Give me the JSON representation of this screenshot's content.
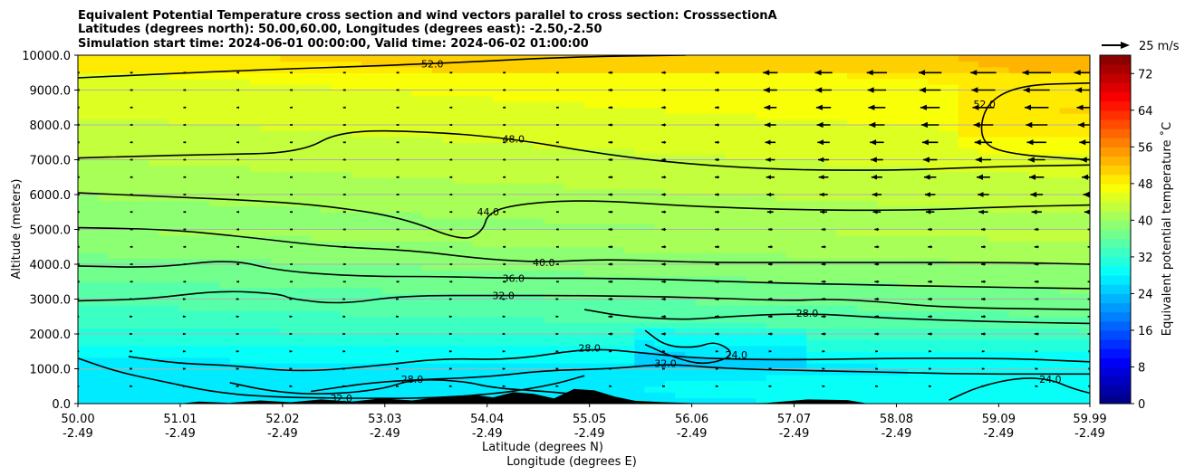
{
  "chart_data": {
    "type": "heatmap",
    "title_lines": [
      "Equivalent Potential Temperature cross section and wind vectors parallel to cross section: CrosssectionA",
      "Latitudes (degrees north): 50.00,60.00, Longitudes (degrees east): -2.50,-2.50",
      "Simulation start time: 2024-06-01 00:00:00, Valid time: 2024-06-02 01:00:00"
    ],
    "xlabel_lines": [
      "Latitude (degrees N)",
      "Longitude (degrees E)"
    ],
    "ylabel": "Altitude (meters)",
    "xlim": [
      50.0,
      59.99
    ],
    "ylim": [
      0,
      10000
    ],
    "x_ticks": [
      {
        "lat": "50.00",
        "lon": "-2.49",
        "value": 50.0
      },
      {
        "lat": "51.01",
        "lon": "-2.49",
        "value": 51.01
      },
      {
        "lat": "52.02",
        "lon": "-2.49",
        "value": 52.02
      },
      {
        "lat": "53.03",
        "lon": "-2.49",
        "value": 53.03
      },
      {
        "lat": "54.04",
        "lon": "-2.49",
        "value": 54.04
      },
      {
        "lat": "55.05",
        "lon": "-2.49",
        "value": 55.05
      },
      {
        "lat": "56.06",
        "lon": "-2.49",
        "value": 56.06
      },
      {
        "lat": "57.07",
        "lon": "-2.49",
        "value": 57.07
      },
      {
        "lat": "58.08",
        "lon": "-2.49",
        "value": 58.08
      },
      {
        "lat": "59.09",
        "lon": "-2.49",
        "value": 59.09
      },
      {
        "lat": "59.99",
        "lon": "-2.49",
        "value": 59.99
      }
    ],
    "y_ticks": [
      {
        "label": "0.0",
        "value": 0
      },
      {
        "label": "1000.0",
        "value": 1000
      },
      {
        "label": "2000.0",
        "value": 2000
      },
      {
        "label": "3000.0",
        "value": 3000
      },
      {
        "label": "4000.0",
        "value": 4000
      },
      {
        "label": "5000.0",
        "value": 5000
      },
      {
        "label": "6000.0",
        "value": 6000
      },
      {
        "label": "7000.0",
        "value": 7000
      },
      {
        "label": "8000.0",
        "value": 8000
      },
      {
        "label": "9000.0",
        "value": 9000
      },
      {
        "label": "10000.0",
        "value": 10000
      }
    ],
    "grid": "horizontal",
    "colorbar": {
      "label": "Equivalent potential temperature ˚C",
      "range": [
        0,
        76
      ],
      "ticks": [
        "0",
        "8",
        "16",
        "24",
        "32",
        "40",
        "48",
        "56",
        "64",
        "72"
      ],
      "tick_values": [
        0,
        8,
        16,
        24,
        32,
        40,
        48,
        56,
        64,
        72
      ]
    },
    "quiver_key": {
      "label": "25 m/s",
      "speed": 25
    },
    "contour_levels": [
      24,
      28,
      32,
      36,
      40,
      44,
      48,
      52
    ],
    "contours": [
      {
        "level": 52,
        "label": "52.0",
        "points": [
          [
            50.0,
            9350
          ],
          [
            51.5,
            9550
          ],
          [
            53.5,
            9750
          ],
          [
            54.8,
            9950
          ],
          [
            56.0,
            10000
          ]
        ]
      },
      {
        "level": 52,
        "label": "52.0",
        "points": [
          [
            59.99,
            7000
          ],
          [
            59.2,
            7150
          ],
          [
            58.9,
            7500
          ],
          [
            58.95,
            8600
          ],
          [
            59.3,
            9150
          ],
          [
            59.99,
            9200
          ]
        ]
      },
      {
        "level": 48,
        "label": "48.0",
        "points": [
          [
            50.0,
            7050
          ],
          [
            50.6,
            7100
          ],
          [
            51.3,
            7150
          ],
          [
            52.2,
            7200
          ],
          [
            52.6,
            7850
          ],
          [
            53.5,
            7800
          ],
          [
            54.3,
            7600
          ],
          [
            55.1,
            7200
          ],
          [
            55.9,
            6900
          ],
          [
            57.0,
            6700
          ],
          [
            58.2,
            6700
          ],
          [
            59.0,
            6800
          ],
          [
            59.99,
            6850
          ]
        ]
      },
      {
        "level": 44,
        "label": "44.0",
        "points": [
          [
            50.0,
            6050
          ],
          [
            50.8,
            5950
          ],
          [
            51.6,
            5850
          ],
          [
            52.4,
            5700
          ],
          [
            53.2,
            5350
          ],
          [
            53.8,
            4650
          ],
          [
            54.0,
            4950
          ],
          [
            54.05,
            5500
          ],
          [
            54.4,
            5750
          ],
          [
            55.05,
            5850
          ],
          [
            56.1,
            5650
          ],
          [
            57.3,
            5550
          ],
          [
            58.3,
            5550
          ],
          [
            59.2,
            5650
          ],
          [
            59.99,
            5700
          ]
        ]
      },
      {
        "level": 40,
        "label": "40.0",
        "points": [
          [
            50.0,
            5050
          ],
          [
            50.9,
            5000
          ],
          [
            51.6,
            4800
          ],
          [
            52.5,
            4500
          ],
          [
            53.3,
            4400
          ],
          [
            54.0,
            4150
          ],
          [
            54.6,
            4050
          ],
          [
            55.2,
            4150
          ],
          [
            56.1,
            4050
          ],
          [
            57.0,
            4050
          ],
          [
            58.2,
            4050
          ],
          [
            59.2,
            4050
          ],
          [
            59.99,
            4000
          ]
        ]
      },
      {
        "level": 36,
        "label": "36.0",
        "points": [
          [
            50.0,
            3950
          ],
          [
            50.8,
            3900
          ],
          [
            51.5,
            4150
          ],
          [
            52.0,
            3800
          ],
          [
            52.8,
            3650
          ],
          [
            53.5,
            3650
          ],
          [
            54.3,
            3600
          ],
          [
            55.2,
            3600
          ],
          [
            56.0,
            3550
          ],
          [
            57.0,
            3450
          ],
          [
            58.0,
            3400
          ],
          [
            58.8,
            3350
          ],
          [
            59.99,
            3300
          ]
        ]
      },
      {
        "level": 32,
        "label": "32.0",
        "points": [
          [
            50.0,
            2950
          ],
          [
            50.7,
            3000
          ],
          [
            51.4,
            3250
          ],
          [
            52.0,
            3150
          ],
          [
            52.1,
            3000
          ],
          [
            52.6,
            2850
          ],
          [
            53.2,
            3100
          ],
          [
            54.2,
            3100
          ],
          [
            55.0,
            3100
          ],
          [
            56.1,
            3050
          ],
          [
            57.0,
            2950
          ],
          [
            57.4,
            3000
          ],
          [
            57.8,
            2950
          ],
          [
            58.6,
            2750
          ],
          [
            59.99,
            2700
          ]
        ]
      },
      {
        "level": 28,
        "label": "28.0",
        "points": [
          [
            55.0,
            2700
          ],
          [
            55.4,
            2500
          ],
          [
            56.0,
            2400
          ],
          [
            56.4,
            2500
          ],
          [
            57.2,
            2600
          ],
          [
            58.0,
            2450
          ],
          [
            59.0,
            2350
          ],
          [
            59.99,
            2300
          ]
        ]
      },
      {
        "level": 28,
        "label": "28.0",
        "points": [
          [
            50.5,
            1350
          ],
          [
            51.0,
            1150
          ],
          [
            51.5,
            1100
          ],
          [
            52.2,
            900
          ],
          [
            53.0,
            1100
          ],
          [
            53.6,
            1300
          ],
          [
            54.3,
            1250
          ],
          [
            55.05,
            1600
          ],
          [
            55.6,
            1450
          ],
          [
            56.1,
            1300
          ],
          [
            57.0,
            1250
          ],
          [
            58.0,
            1300
          ],
          [
            59.2,
            1300
          ],
          [
            59.99,
            1200
          ]
        ]
      },
      {
        "level": 32,
        "label": "32.0",
        "points": [
          [
            52.3,
            350
          ],
          [
            53.0,
            650
          ],
          [
            54.0,
            750
          ],
          [
            54.6,
            950
          ],
          [
            55.3,
            1000
          ],
          [
            55.8,
            1150
          ],
          [
            56.4,
            1000
          ],
          [
            57.2,
            950
          ],
          [
            58.0,
            900
          ],
          [
            58.8,
            850
          ],
          [
            59.99,
            850
          ]
        ]
      },
      {
        "level": 28,
        "label": "28.0",
        "points": [
          [
            51.5,
            600
          ],
          [
            51.9,
            350
          ],
          [
            52.4,
            250
          ],
          [
            53.0,
            400
          ],
          [
            53.3,
            700
          ],
          [
            53.8,
            650
          ],
          [
            54.1,
            450
          ],
          [
            54.6,
            350
          ],
          [
            55.0,
            250
          ]
        ]
      },
      {
        "level": 32,
        "label": "32.0",
        "points": [
          [
            50.0,
            1300
          ],
          [
            50.4,
            900
          ],
          [
            50.9,
            600
          ],
          [
            51.3,
            350
          ],
          [
            51.8,
            200
          ],
          [
            52.6,
            150
          ],
          [
            53.5,
            150
          ],
          [
            54.2,
            300
          ],
          [
            54.7,
            550
          ],
          [
            55.0,
            800
          ]
        ]
      },
      {
        "level": 24,
        "label": "24.0",
        "points": [
          [
            55.6,
            2100
          ],
          [
            55.8,
            1650
          ],
          [
            56.1,
            1600
          ],
          [
            56.3,
            1800
          ],
          [
            56.5,
            1400
          ],
          [
            56.2,
            1100
          ],
          [
            55.9,
            1300
          ],
          [
            55.6,
            1700
          ]
        ]
      },
      {
        "level": 24,
        "label": "24.0",
        "points": [
          [
            58.6,
            100
          ],
          [
            58.9,
            500
          ],
          [
            59.3,
            750
          ],
          [
            59.6,
            700
          ],
          [
            59.8,
            450
          ],
          [
            59.99,
            300
          ]
        ]
      }
    ],
    "terrain_profile": [
      [
        50.0,
        0
      ],
      [
        51.0,
        0
      ],
      [
        51.2,
        60
      ],
      [
        51.5,
        20
      ],
      [
        51.8,
        90
      ],
      [
        52.1,
        40
      ],
      [
        52.4,
        120
      ],
      [
        52.7,
        60
      ],
      [
        53.0,
        150
      ],
      [
        53.3,
        90
      ],
      [
        53.6,
        200
      ],
      [
        53.9,
        250
      ],
      [
        54.1,
        180
      ],
      [
        54.3,
        330
      ],
      [
        54.5,
        280
      ],
      [
        54.7,
        150
      ],
      [
        54.9,
        420
      ],
      [
        55.1,
        380
      ],
      [
        55.3,
        200
      ],
      [
        55.5,
        80
      ],
      [
        55.8,
        40
      ],
      [
        56.1,
        10
      ],
      [
        56.4,
        0
      ],
      [
        56.8,
        20
      ],
      [
        57.2,
        120
      ],
      [
        57.6,
        100
      ],
      [
        57.8,
        0
      ],
      [
        59.99,
        0
      ]
    ],
    "wind_field": {
      "description": "horizontal wind component parallel to cross section (m/s); negative = toward 50N",
      "levels_m": [
        500,
        1000,
        1500,
        2000,
        2500,
        3000,
        3500,
        4000,
        4500,
        5000,
        5500,
        6000,
        6500,
        7000,
        7500,
        8000,
        8500,
        9000,
        9500
      ],
      "columns_lat": [
        50.0,
        51.0,
        52.0,
        53.0,
        54.0,
        55.0,
        56.0,
        57.0,
        58.0,
        59.0,
        59.99
      ],
      "strong_region": {
        "lat_from": 56.5,
        "alt_from": 5500,
        "max_speed": -14
      }
    }
  }
}
